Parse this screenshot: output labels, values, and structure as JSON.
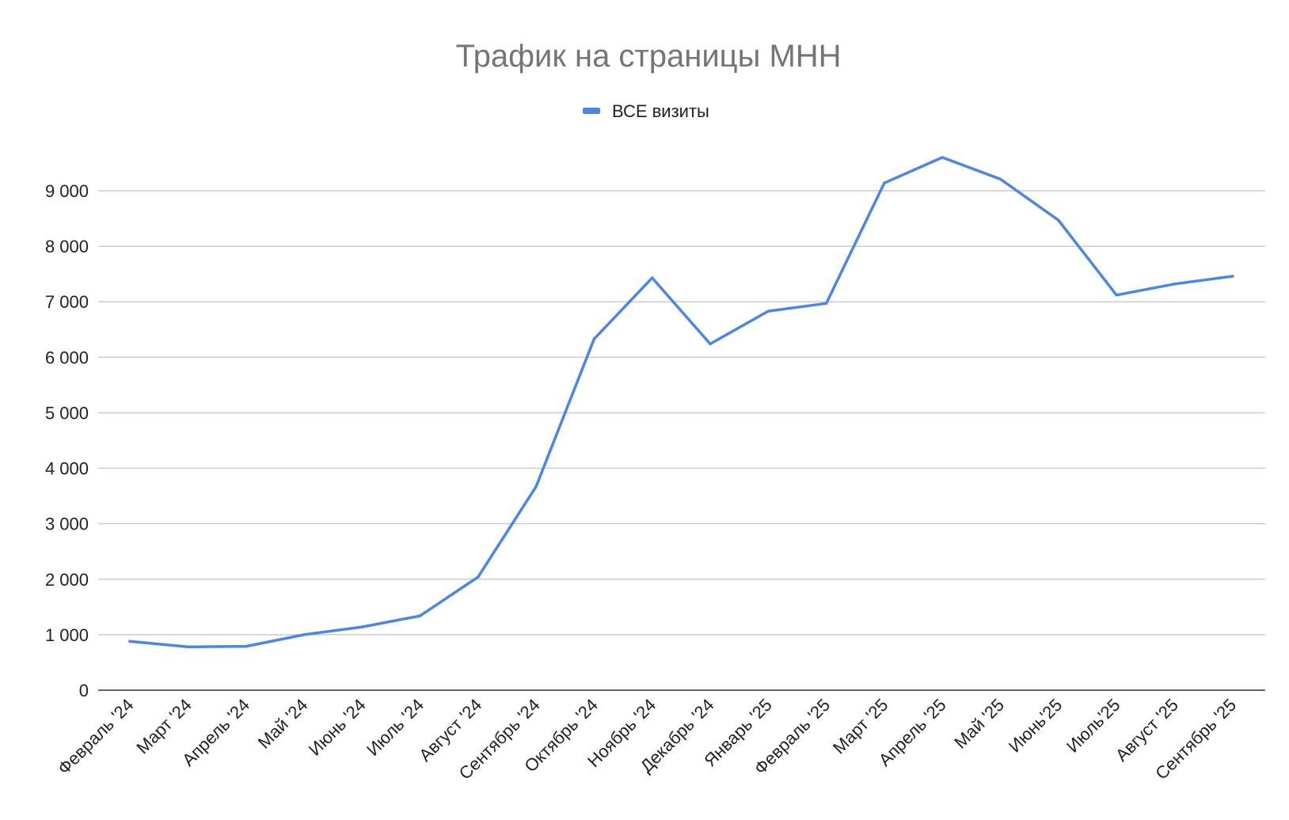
{
  "chart_data": {
    "type": "line",
    "title": "Трафик на страницы МНН",
    "xlabel": "",
    "ylabel": "",
    "categories": [
      "Февраль '24",
      "Март '24",
      "Апрель '24",
      "Май '24",
      "Июнь '24",
      "Июль '24",
      "Август '24",
      "Сентябрь '24",
      "Октябрь '24",
      "Ноябрь '24",
      "Декабрь '24",
      "Январь '25",
      "Февраль '25",
      "Март '25",
      "Апрель '25",
      "Май '25",
      "Июнь'25",
      "Июль'25",
      "Август '25",
      "Сентябрь '25"
    ],
    "series": [
      {
        "name": "ВСЕ визиты",
        "color": "#4a86e8",
        "values": [
          880,
          780,
          790,
          1000,
          1140,
          1340,
          2040,
          3670,
          6330,
          7430,
          6240,
          6830,
          6970,
          9140,
          9600,
          9210,
          8470,
          7120,
          7320,
          7460
        ]
      }
    ],
    "ylim": [
      0,
      9000
    ],
    "yticks": [
      0,
      1000,
      2000,
      3000,
      4000,
      5000,
      6000,
      7000,
      8000,
      9000
    ],
    "ytick_labels": [
      "0",
      "1 000",
      "2 000",
      "3 000",
      "4 000",
      "5 000",
      "6 000",
      "7 000",
      "8 000",
      "9 000"
    ],
    "grid": true,
    "legend_position": "top-center"
  }
}
